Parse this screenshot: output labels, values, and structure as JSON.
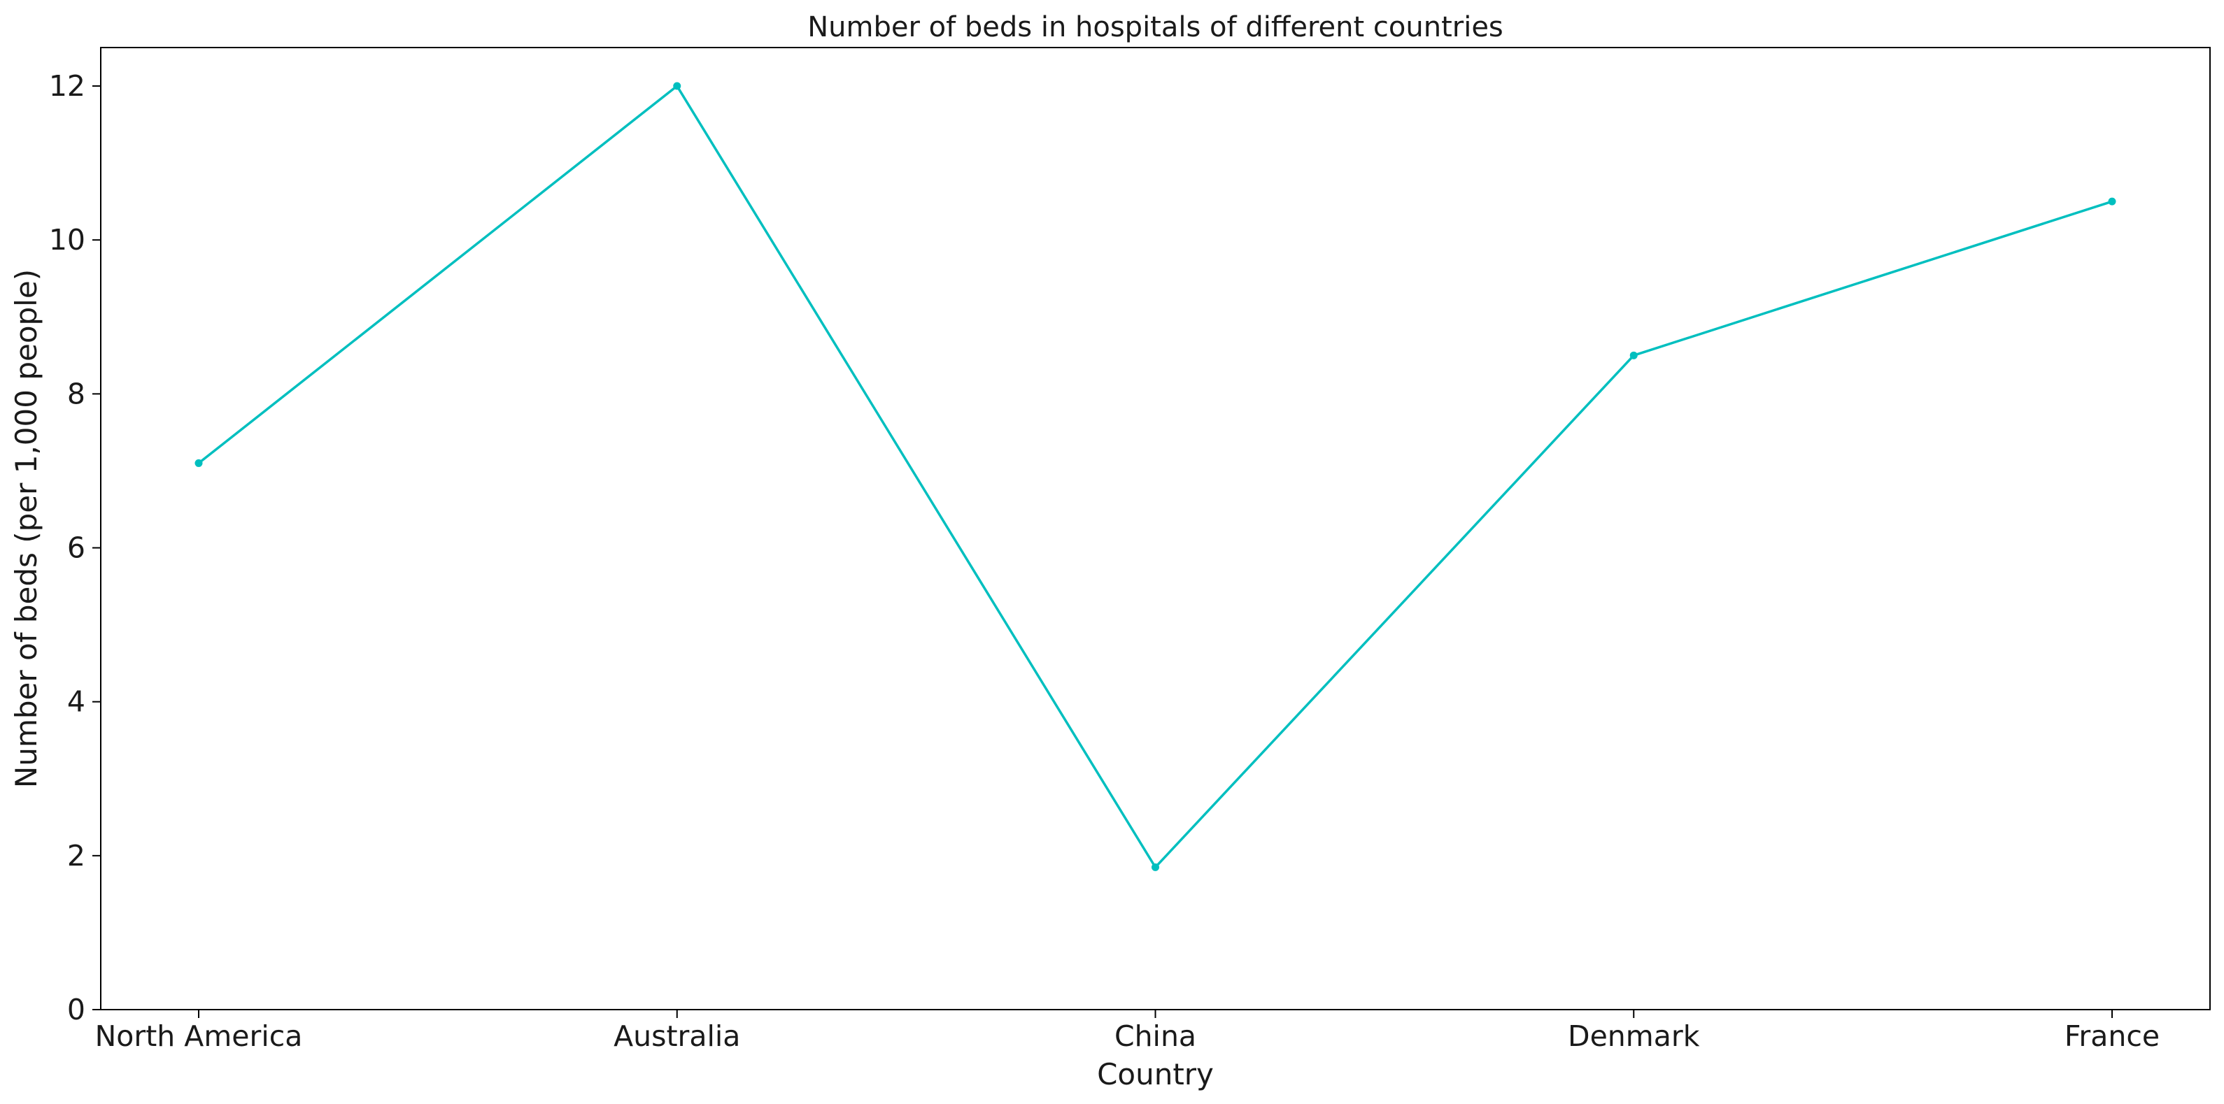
{
  "chart_data": {
    "type": "line",
    "title": "Number of beds in hospitals of different countries",
    "xlabel": "Country",
    "ylabel": "Number of beds (per 1,000 people)",
    "categories": [
      "North America",
      "Australia",
      "China",
      "Denmark",
      "France"
    ],
    "series": [
      {
        "values": [
          7.1,
          12.0,
          1.85,
          8.5,
          10.5
        ],
        "color": "#00bfbf",
        "marker": "dot"
      }
    ],
    "ylim": [
      0,
      12.5
    ],
    "yticks": [
      0,
      2,
      4,
      6,
      8,
      10,
      12
    ],
    "grid": false,
    "legend": "none"
  }
}
